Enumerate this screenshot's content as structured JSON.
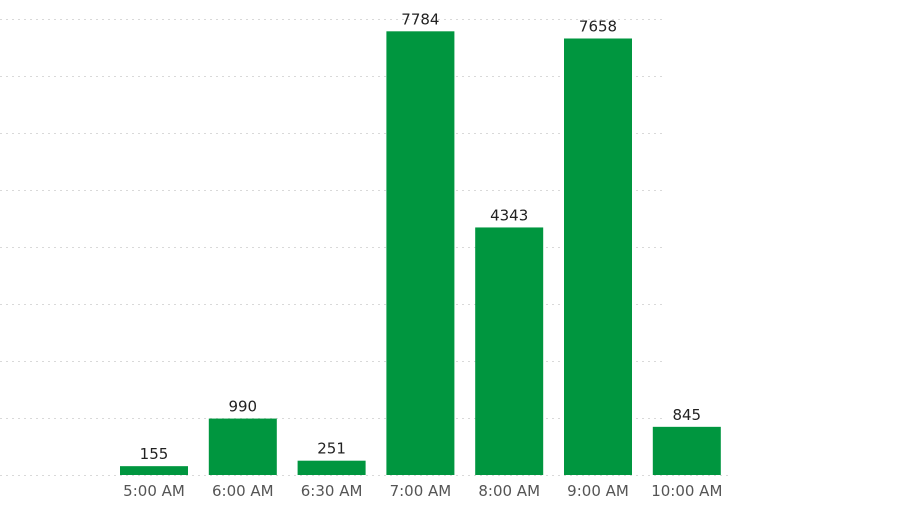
{
  "chart_data": {
    "type": "bar",
    "categories": [
      "5:00 AM",
      "6:00 AM",
      "6:30 AM",
      "7:00 AM",
      "8:00 AM",
      "9:00 AM",
      "10:00 AM"
    ],
    "values": [
      155,
      990,
      251,
      7784,
      4343,
      7658,
      845
    ],
    "data_labels": [
      "155",
      "990",
      "251",
      "7784",
      "4343",
      "7658",
      "845"
    ],
    "ylim": [
      0,
      8000
    ],
    "grid": true,
    "bar_color": "#00963f"
  }
}
